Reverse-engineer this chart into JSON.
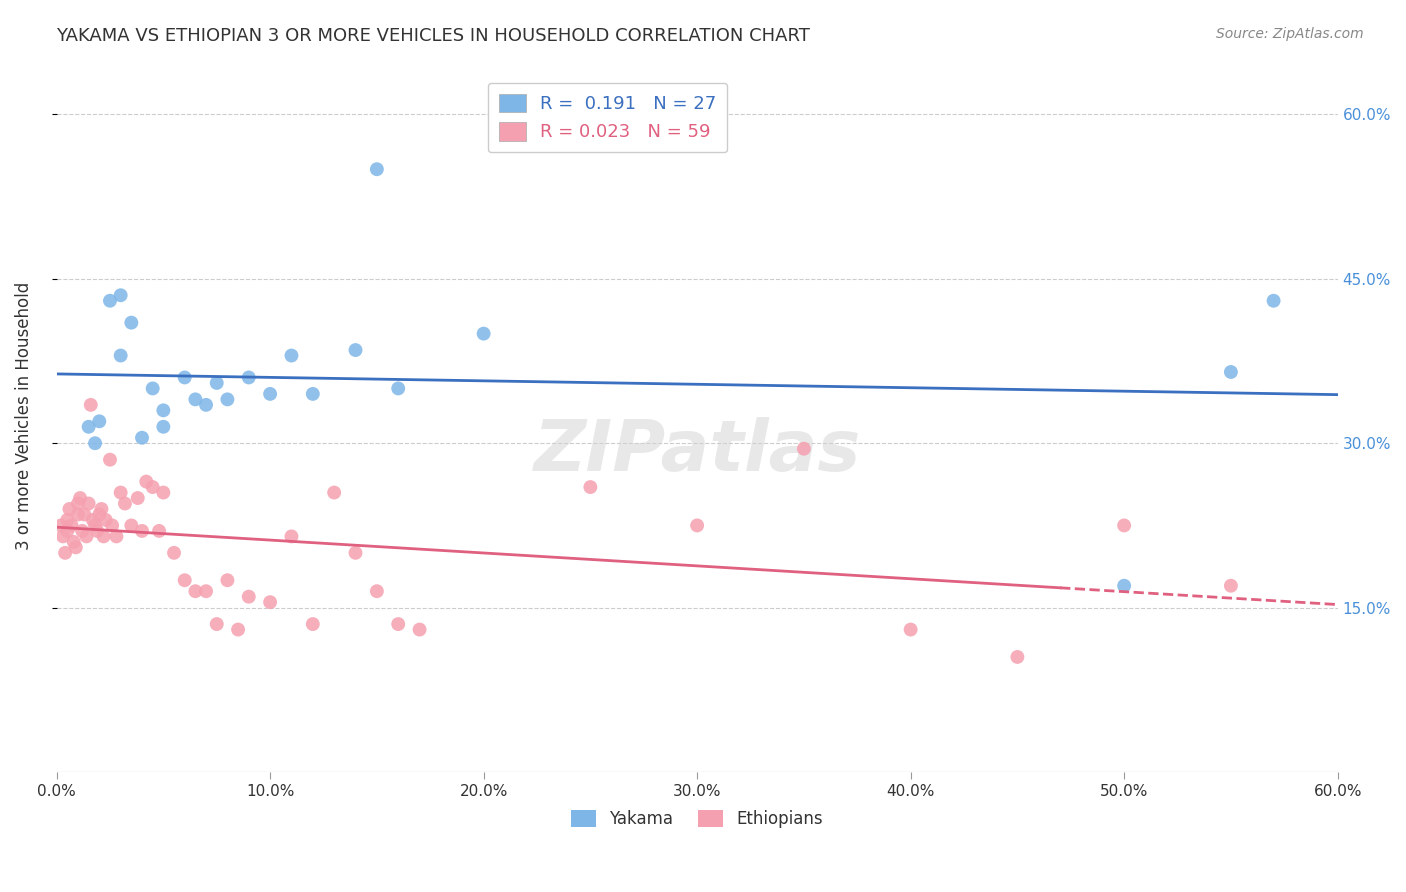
{
  "title": "YAKAMA VS ETHIOPIAN 3 OR MORE VEHICLES IN HOUSEHOLD CORRELATION CHART",
  "source": "Source: ZipAtlas.com",
  "ylabel": "3 or more Vehicles in Household",
  "x_ticks": [
    0.0,
    10.0,
    20.0,
    30.0,
    40.0,
    50.0,
    60.0
  ],
  "y_tick_labels_right": [
    "15.0%",
    "30.0%",
    "45.0%",
    "60.0%"
  ],
  "xlim": [
    0.0,
    60.0
  ],
  "ylim": [
    0.0,
    65.0
  ],
  "R_yakama": 0.191,
  "N_yakama": 27,
  "R_ethiopian": 0.023,
  "N_ethiopian": 59,
  "blue_color": "#7EB6E8",
  "pink_color": "#F5A0B0",
  "blue_line_color": "#3B6FBF",
  "pink_line_color": "#E06080",
  "yakama_x": [
    1.5,
    1.8,
    2.0,
    2.5,
    3.0,
    3.0,
    3.5,
    4.0,
    4.5,
    5.0,
    5.0,
    6.0,
    6.5,
    7.0,
    7.5,
    8.0,
    9.0,
    10.0,
    11.0,
    12.0,
    14.0,
    15.0,
    16.0,
    20.0,
    50.0,
    55.0,
    57.0
  ],
  "yakama_y": [
    31.5,
    30.0,
    32.0,
    43.0,
    43.5,
    38.0,
    41.0,
    30.5,
    35.0,
    31.5,
    33.0,
    36.0,
    34.0,
    33.5,
    35.5,
    34.0,
    36.0,
    34.5,
    38.0,
    34.5,
    38.5,
    55.0,
    35.0,
    40.0,
    17.0,
    36.5,
    43.0
  ],
  "ethiopian_x": [
    0.2,
    0.3,
    0.4,
    0.5,
    0.5,
    0.6,
    0.7,
    0.8,
    0.9,
    1.0,
    1.0,
    1.1,
    1.2,
    1.3,
    1.4,
    1.5,
    1.6,
    1.7,
    1.8,
    1.9,
    2.0,
    2.1,
    2.2,
    2.3,
    2.5,
    2.6,
    2.8,
    3.0,
    3.2,
    3.5,
    3.8,
    4.0,
    4.2,
    4.5,
    4.8,
    5.0,
    5.5,
    6.0,
    6.5,
    7.0,
    7.5,
    8.0,
    8.5,
    9.0,
    10.0,
    11.0,
    12.0,
    13.0,
    14.0,
    15.0,
    16.0,
    17.0,
    25.0,
    30.0,
    35.0,
    40.0,
    45.0,
    50.0,
    55.0
  ],
  "ethiopian_y": [
    22.5,
    21.5,
    20.0,
    22.0,
    23.0,
    24.0,
    22.5,
    21.0,
    20.5,
    23.5,
    24.5,
    25.0,
    22.0,
    23.5,
    21.5,
    24.5,
    33.5,
    23.0,
    22.5,
    22.0,
    23.5,
    24.0,
    21.5,
    23.0,
    28.5,
    22.5,
    21.5,
    25.5,
    24.5,
    22.5,
    25.0,
    22.0,
    26.5,
    26.0,
    22.0,
    25.5,
    20.0,
    17.5,
    16.5,
    16.5,
    13.5,
    17.5,
    13.0,
    16.0,
    15.5,
    21.5,
    13.5,
    25.5,
    20.0,
    16.5,
    13.5,
    13.0,
    26.0,
    22.5,
    29.5,
    13.0,
    10.5,
    22.5,
    17.0
  ],
  "watermark": "ZIPatlas",
  "background_color": "#FFFFFF",
  "grid_color": "#CCCCCC"
}
